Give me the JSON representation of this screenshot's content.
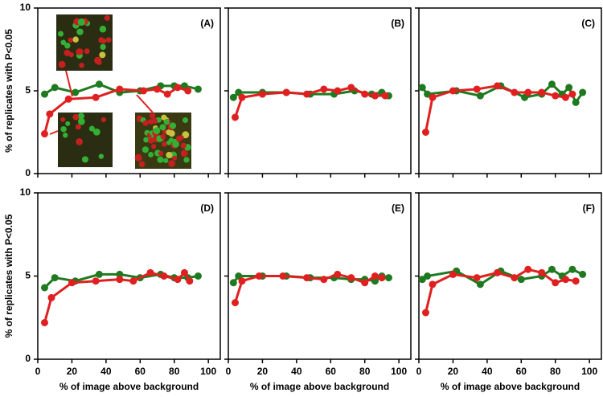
{
  "chart_data": [
    {
      "type": "line",
      "label": "(A)",
      "ylabel": "% of replicates with P<0.05",
      "xlim": [
        0,
        107
      ],
      "ylim": [
        0,
        10
      ],
      "yticks": [
        0,
        5,
        10
      ],
      "series": [
        {
          "color": "#1f7a1f",
          "x": [
            4,
            10,
            22,
            36,
            48,
            60,
            72,
            80,
            86,
            94
          ],
          "values": [
            4.8,
            5.2,
            4.9,
            5.4,
            4.9,
            5.0,
            5.3,
            5.3,
            5.3,
            5.1
          ]
        },
        {
          "color": "#e02020",
          "x": [
            4,
            7,
            18,
            34,
            48,
            62,
            70,
            76,
            82,
            88
          ],
          "values": [
            2.4,
            3.6,
            4.5,
            4.6,
            5.1,
            5.0,
            5.1,
            4.8,
            5.2,
            5.0
          ]
        }
      ]
    },
    {
      "type": "line",
      "label": "(B)",
      "xlim": [
        0,
        107
      ],
      "ylim": [
        0,
        10
      ],
      "series": [
        {
          "color": "#1f7a1f",
          "x": [
            3,
            6,
            20,
            34,
            48,
            62,
            74,
            84,
            90,
            94
          ],
          "values": [
            4.6,
            4.9,
            4.9,
            4.9,
            4.8,
            4.8,
            5.0,
            4.8,
            4.9,
            4.7
          ]
        },
        {
          "color": "#e02020",
          "x": [
            4,
            8,
            20,
            34,
            46,
            56,
            64,
            72,
            80,
            86,
            92
          ],
          "values": [
            3.4,
            4.6,
            4.8,
            4.9,
            4.8,
            5.1,
            5.0,
            5.2,
            4.8,
            4.7,
            4.7
          ]
        }
      ]
    },
    {
      "type": "line",
      "label": "(C)",
      "xlim": [
        0,
        107
      ],
      "ylim": [
        0,
        10
      ],
      "series": [
        {
          "color": "#1f7a1f",
          "x": [
            2,
            5,
            22,
            36,
            48,
            62,
            72,
            78,
            84,
            88,
            92,
            96
          ],
          "values": [
            5.2,
            4.8,
            5.0,
            4.7,
            5.3,
            4.6,
            4.8,
            5.4,
            4.8,
            5.2,
            4.3,
            4.9
          ]
        },
        {
          "color": "#e02020",
          "x": [
            4,
            8,
            20,
            34,
            46,
            56,
            64,
            72,
            80,
            86,
            90
          ],
          "values": [
            2.5,
            4.6,
            5.0,
            5.1,
            5.3,
            4.9,
            4.9,
            4.9,
            4.7,
            4.6,
            4.8
          ]
        }
      ]
    },
    {
      "type": "line",
      "label": "(D)",
      "ylabel": "% of replicates with P<0.05",
      "xlabel": "% of image above background",
      "xlim": [
        0,
        107
      ],
      "ylim": [
        0,
        10
      ],
      "yticks": [
        0,
        5,
        10
      ],
      "xticks": [
        0,
        20,
        40,
        60,
        80,
        100
      ],
      "series": [
        {
          "color": "#1f7a1f",
          "x": [
            4,
            10,
            22,
            36,
            48,
            60,
            72,
            80,
            88,
            94
          ],
          "values": [
            4.3,
            4.9,
            4.7,
            5.1,
            5.1,
            4.9,
            5.1,
            4.9,
            4.9,
            5.0
          ]
        },
        {
          "color": "#e02020",
          "x": [
            4,
            8,
            20,
            34,
            48,
            56,
            66,
            74,
            82,
            86,
            89
          ],
          "values": [
            2.2,
            3.7,
            4.6,
            4.7,
            4.8,
            4.7,
            5.2,
            5.0,
            4.8,
            5.2,
            4.7
          ]
        }
      ]
    },
    {
      "type": "line",
      "label": "(E)",
      "xlabel": "% of image above background",
      "xlim": [
        0,
        107
      ],
      "ylim": [
        0,
        10
      ],
      "xticks": [
        0,
        20,
        40,
        60,
        80,
        100
      ],
      "series": [
        {
          "color": "#1f7a1f",
          "x": [
            3,
            6,
            20,
            34,
            48,
            62,
            72,
            80,
            86,
            90,
            94
          ],
          "values": [
            4.6,
            5.0,
            5.0,
            5.0,
            4.9,
            4.9,
            4.8,
            4.8,
            4.7,
            5.0,
            4.9
          ]
        },
        {
          "color": "#e02020",
          "x": [
            4,
            8,
            18,
            32,
            46,
            56,
            64,
            72,
            80,
            86,
            90
          ],
          "values": [
            3.4,
            4.7,
            5.0,
            5.0,
            4.9,
            4.8,
            5.1,
            4.9,
            4.6,
            5.0,
            4.9
          ]
        }
      ]
    },
    {
      "type": "line",
      "label": "(F)",
      "xlabel": "% of image above background",
      "xlim": [
        0,
        107
      ],
      "ylim": [
        0,
        10
      ],
      "xticks": [
        0,
        20,
        40,
        60,
        80,
        100
      ],
      "series": [
        {
          "color": "#1f7a1f",
          "x": [
            2,
            5,
            22,
            36,
            48,
            60,
            72,
            78,
            84,
            90,
            96
          ],
          "values": [
            4.8,
            5.0,
            5.3,
            4.5,
            5.3,
            4.8,
            5.0,
            5.4,
            5.0,
            5.4,
            5.1
          ]
        },
        {
          "color": "#e02020",
          "x": [
            4,
            8,
            20,
            34,
            46,
            56,
            64,
            72,
            80,
            86,
            92
          ],
          "values": [
            2.8,
            4.5,
            5.1,
            4.9,
            5.2,
            4.9,
            5.4,
            5.2,
            4.6,
            4.8,
            4.7
          ]
        }
      ]
    }
  ]
}
